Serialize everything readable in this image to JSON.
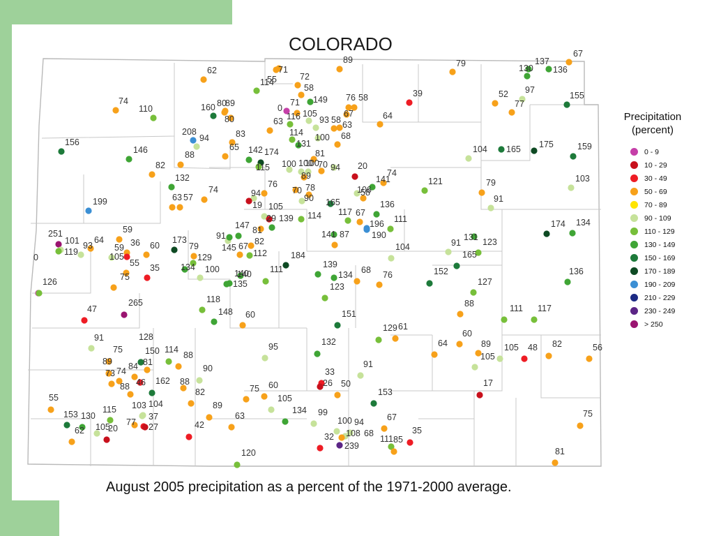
{
  "title": "COLORADO",
  "caption": "August 2005 precipitation as a percent of the 1971-2000 average.",
  "legend": {
    "title_line1": "Precipitation",
    "title_line2": "(percent)",
    "items": [
      {
        "label": "0 - 9",
        "color": "#c53fa8"
      },
      {
        "label": "10 - 29",
        "color": "#c8101c"
      },
      {
        "label": "30 - 49",
        "color": "#ee1c24"
      },
      {
        "label": "50 - 69",
        "color": "#f7a11a"
      },
      {
        "label": "70 - 89",
        "color": "#ffe500"
      },
      {
        "label": "90 - 109",
        "color": "#c6e29a"
      },
      {
        "label": "110 - 129",
        "color": "#77bf3a"
      },
      {
        "label": "130 - 149",
        "color": "#3fa535"
      },
      {
        "label": "150 - 169",
        "color": "#1d7a3a"
      },
      {
        "label": "170 - 189",
        "color": "#0e4a23"
      },
      {
        "label": "190 - 209",
        "color": "#3b8fd4"
      },
      {
        "label": "210 - 229",
        "color": "#1c2a84"
      },
      {
        "label": "230 - 249",
        "color": "#5b2586"
      },
      {
        "label": "> 250",
        "color": "#9a1470"
      }
    ]
  },
  "stations": [
    {
      "v": "55"
    },
    {
      "v": "71"
    },
    {
      "v": "89"
    },
    {
      "v": "62"
    },
    {
      "v": "114"
    },
    {
      "v": "72"
    },
    {
      "v": "58"
    },
    {
      "v": "79"
    },
    {
      "v": "137"
    },
    {
      "v": "136"
    },
    {
      "v": "130"
    },
    {
      "v": "67"
    },
    {
      "v": "149"
    },
    {
      "v": "76"
    },
    {
      "v": "58"
    },
    {
      "v": "39"
    },
    {
      "v": "97"
    },
    {
      "v": "74"
    },
    {
      "v": "110"
    },
    {
      "v": "160"
    },
    {
      "v": "80"
    },
    {
      "v": "89"
    },
    {
      "v": "0"
    },
    {
      "v": "71"
    },
    {
      "v": "67"
    },
    {
      "v": "52"
    },
    {
      "v": "77"
    },
    {
      "v": "155"
    },
    {
      "v": "80"
    },
    {
      "v": "116"
    },
    {
      "v": "105"
    },
    {
      "v": "93"
    },
    {
      "v": "58"
    },
    {
      "v": "63"
    },
    {
      "v": "64"
    },
    {
      "v": "63"
    },
    {
      "v": "208"
    },
    {
      "v": "94"
    },
    {
      "v": "83"
    },
    {
      "v": "114"
    },
    {
      "v": "100"
    },
    {
      "v": "68"
    },
    {
      "v": "156"
    },
    {
      "v": "131"
    },
    {
      "v": "65"
    },
    {
      "v": "142"
    },
    {
      "v": "174"
    },
    {
      "v": "104"
    },
    {
      "v": "165"
    },
    {
      "v": "175"
    },
    {
      "v": "159"
    },
    {
      "v": "146"
    },
    {
      "v": "88"
    },
    {
      "v": "81"
    },
    {
      "v": "82"
    },
    {
      "v": "100"
    },
    {
      "v": "115"
    },
    {
      "v": "100"
    },
    {
      "v": "100"
    },
    {
      "v": "70"
    },
    {
      "v": "94"
    },
    {
      "v": "20"
    },
    {
      "v": "132"
    },
    {
      "v": "89"
    },
    {
      "v": "74"
    },
    {
      "v": "141"
    },
    {
      "v": "76"
    },
    {
      "v": "121"
    },
    {
      "v": "79"
    },
    {
      "v": "103"
    },
    {
      "v": "74"
    },
    {
      "v": "63"
    },
    {
      "v": "57"
    },
    {
      "v": "94"
    },
    {
      "v": "70"
    },
    {
      "v": "78"
    },
    {
      "v": "90"
    },
    {
      "v": "106"
    },
    {
      "v": "58"
    },
    {
      "v": "199"
    },
    {
      "v": "19"
    },
    {
      "v": "105"
    },
    {
      "v": "165"
    },
    {
      "v": "140"
    },
    {
      "v": "91"
    },
    {
      "v": "29"
    },
    {
      "v": "139"
    },
    {
      "v": "136"
    },
    {
      "v": "114"
    },
    {
      "v": "117"
    },
    {
      "v": "67"
    },
    {
      "v": "174"
    },
    {
      "v": "134"
    },
    {
      "v": "111"
    },
    {
      "v": "147"
    },
    {
      "v": "196"
    },
    {
      "v": "251"
    },
    {
      "v": "101"
    },
    {
      "v": "64"
    },
    {
      "v": "59"
    },
    {
      "v": "173"
    },
    {
      "v": "91"
    },
    {
      "v": "81"
    },
    {
      "v": "141"
    },
    {
      "v": "87"
    },
    {
      "v": "190"
    },
    {
      "v": "91"
    },
    {
      "v": "131"
    },
    {
      "v": "123"
    },
    {
      "v": "119"
    },
    {
      "v": "93"
    },
    {
      "v": "59"
    },
    {
      "v": "36"
    },
    {
      "v": "60"
    },
    {
      "v": "79"
    },
    {
      "v": "145"
    },
    {
      "v": "67"
    },
    {
      "v": "82"
    },
    {
      "v": "104"
    },
    {
      "v": "0"
    },
    {
      "v": "105"
    },
    {
      "v": "55"
    },
    {
      "v": "129"
    },
    {
      "v": "112"
    },
    {
      "v": "184"
    },
    {
      "v": "165"
    },
    {
      "v": "35"
    },
    {
      "v": "134"
    },
    {
      "v": "100"
    },
    {
      "v": "111"
    },
    {
      "v": "139"
    },
    {
      "v": "68"
    },
    {
      "v": "76"
    },
    {
      "v": "152"
    },
    {
      "v": "136"
    },
    {
      "v": "75"
    },
    {
      "v": "140"
    },
    {
      "v": "134"
    },
    {
      "v": "126"
    },
    {
      "v": "135"
    },
    {
      "v": "127"
    },
    {
      "v": "123"
    },
    {
      "v": "118"
    },
    {
      "v": "88"
    },
    {
      "v": "47"
    },
    {
      "v": "265"
    },
    {
      "v": "148"
    },
    {
      "v": "60"
    },
    {
      "v": "111"
    },
    {
      "v": "117"
    },
    {
      "v": "151"
    },
    {
      "v": "129"
    },
    {
      "v": "61"
    },
    {
      "v": "60"
    },
    {
      "v": "91"
    },
    {
      "v": "128"
    },
    {
      "v": "132"
    },
    {
      "v": "64"
    },
    {
      "v": "89"
    },
    {
      "v": "105"
    },
    {
      "v": "48"
    },
    {
      "v": "82"
    },
    {
      "v": "56"
    },
    {
      "v": "75"
    },
    {
      "v": "150"
    },
    {
      "v": "114"
    },
    {
      "v": "95"
    },
    {
      "v": "88"
    },
    {
      "v": "105"
    },
    {
      "v": "89"
    },
    {
      "v": "84"
    },
    {
      "v": "81"
    },
    {
      "v": "90"
    },
    {
      "v": "91"
    },
    {
      "v": "73"
    },
    {
      "v": "74"
    },
    {
      "v": "33"
    },
    {
      "v": "162"
    },
    {
      "v": "88"
    },
    {
      "v": "46"
    },
    {
      "v": "88"
    },
    {
      "v": "26"
    },
    {
      "v": "50"
    },
    {
      "v": "17"
    },
    {
      "v": "82"
    },
    {
      "v": "75"
    },
    {
      "v": "60"
    },
    {
      "v": "153"
    },
    {
      "v": "55"
    },
    {
      "v": "103"
    },
    {
      "v": "104"
    },
    {
      "v": "89"
    },
    {
      "v": "105"
    },
    {
      "v": "115"
    },
    {
      "v": "134"
    },
    {
      "v": "99"
    },
    {
      "v": "153"
    },
    {
      "v": "130"
    },
    {
      "v": "37"
    },
    {
      "v": "63"
    },
    {
      "v": "100"
    },
    {
      "v": "94"
    },
    {
      "v": "67"
    },
    {
      "v": "75"
    },
    {
      "v": "77"
    },
    {
      "v": "27"
    },
    {
      "v": "42"
    },
    {
      "v": "105"
    },
    {
      "v": "20"
    },
    {
      "v": "108"
    },
    {
      "v": "68"
    },
    {
      "v": "35"
    },
    {
      "v": "62"
    },
    {
      "v": "32"
    },
    {
      "v": "239"
    },
    {
      "v": "111"
    },
    {
      "v": "85"
    },
    {
      "v": "120"
    },
    {
      "v": "81"
    }
  ]
}
